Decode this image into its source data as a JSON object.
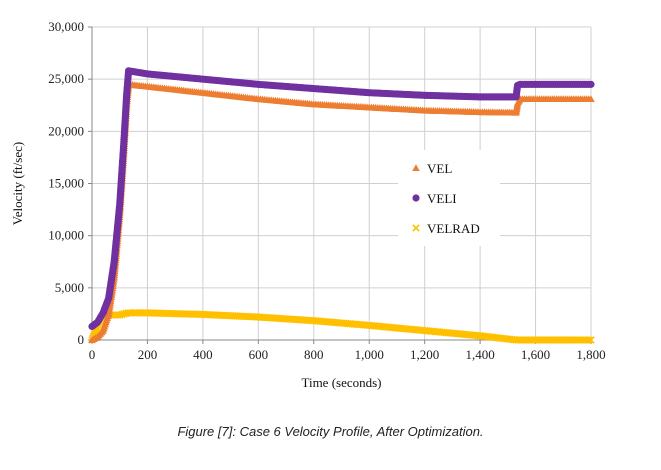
{
  "caption": "Figure [7]: Case 6 Velocity Profile, After Optimization.",
  "colors": {
    "VEL": "#ED7D31",
    "VELI": "#7030A0",
    "VELRAD": "#FFC000",
    "grid": "#d0d0d0",
    "axis": "#888888"
  },
  "chart_data": {
    "type": "scatter",
    "title": "",
    "xlabel": "Time (seconds)",
    "ylabel": "Velocity (ft/sec)",
    "xlim": [
      0,
      1800
    ],
    "ylim": [
      0,
      30000
    ],
    "x_ticks": [
      0,
      200,
      400,
      600,
      800,
      1000,
      1200,
      1400,
      1600,
      1800
    ],
    "x_tick_labels": [
      "0",
      "200",
      "400",
      "600",
      "800",
      "1,000",
      "1,200",
      "1,400",
      "1,600",
      "1,800"
    ],
    "y_ticks": [
      0,
      5000,
      10000,
      15000,
      20000,
      25000,
      30000
    ],
    "y_tick_labels": [
      "0",
      "5,000",
      "10,000",
      "15,000",
      "20,000",
      "25,000",
      "30,000"
    ],
    "grid": "vertical-and-horizontal",
    "legend_position": "right-center",
    "series": [
      {
        "name": "VEL",
        "marker": "triangle",
        "points": [
          [
            0,
            0
          ],
          [
            20,
            300
          ],
          [
            40,
            900
          ],
          [
            60,
            2500
          ],
          [
            80,
            6000
          ],
          [
            100,
            12000
          ],
          [
            115,
            18000
          ],
          [
            125,
            22500
          ],
          [
            132,
            24500
          ],
          [
            200,
            24300
          ],
          [
            400,
            23700
          ],
          [
            600,
            23100
          ],
          [
            800,
            22600
          ],
          [
            1000,
            22300
          ],
          [
            1200,
            22000
          ],
          [
            1400,
            21850
          ],
          [
            1530,
            21800
          ],
          [
            1535,
            22700
          ],
          [
            1545,
            23100
          ],
          [
            1800,
            23100
          ]
        ]
      },
      {
        "name": "VELI",
        "marker": "circle",
        "points": [
          [
            0,
            1300
          ],
          [
            20,
            1700
          ],
          [
            40,
            2600
          ],
          [
            60,
            4000
          ],
          [
            80,
            7500
          ],
          [
            100,
            13000
          ],
          [
            115,
            19000
          ],
          [
            125,
            23500
          ],
          [
            132,
            25800
          ],
          [
            200,
            25500
          ],
          [
            400,
            25000
          ],
          [
            600,
            24500
          ],
          [
            800,
            24100
          ],
          [
            1000,
            23700
          ],
          [
            1200,
            23450
          ],
          [
            1400,
            23300
          ],
          [
            1530,
            23300
          ],
          [
            1535,
            24400
          ],
          [
            1545,
            24500
          ],
          [
            1800,
            24500
          ]
        ]
      },
      {
        "name": "VELRAD",
        "marker": "x",
        "points": [
          [
            0,
            0
          ],
          [
            20,
            1200
          ],
          [
            40,
            2100
          ],
          [
            60,
            2400
          ],
          [
            100,
            2400
          ],
          [
            130,
            2600
          ],
          [
            200,
            2600
          ],
          [
            400,
            2450
          ],
          [
            600,
            2200
          ],
          [
            800,
            1850
          ],
          [
            1000,
            1400
          ],
          [
            1200,
            900
          ],
          [
            1400,
            400
          ],
          [
            1530,
            0
          ],
          [
            1800,
            0
          ]
        ]
      }
    ]
  }
}
